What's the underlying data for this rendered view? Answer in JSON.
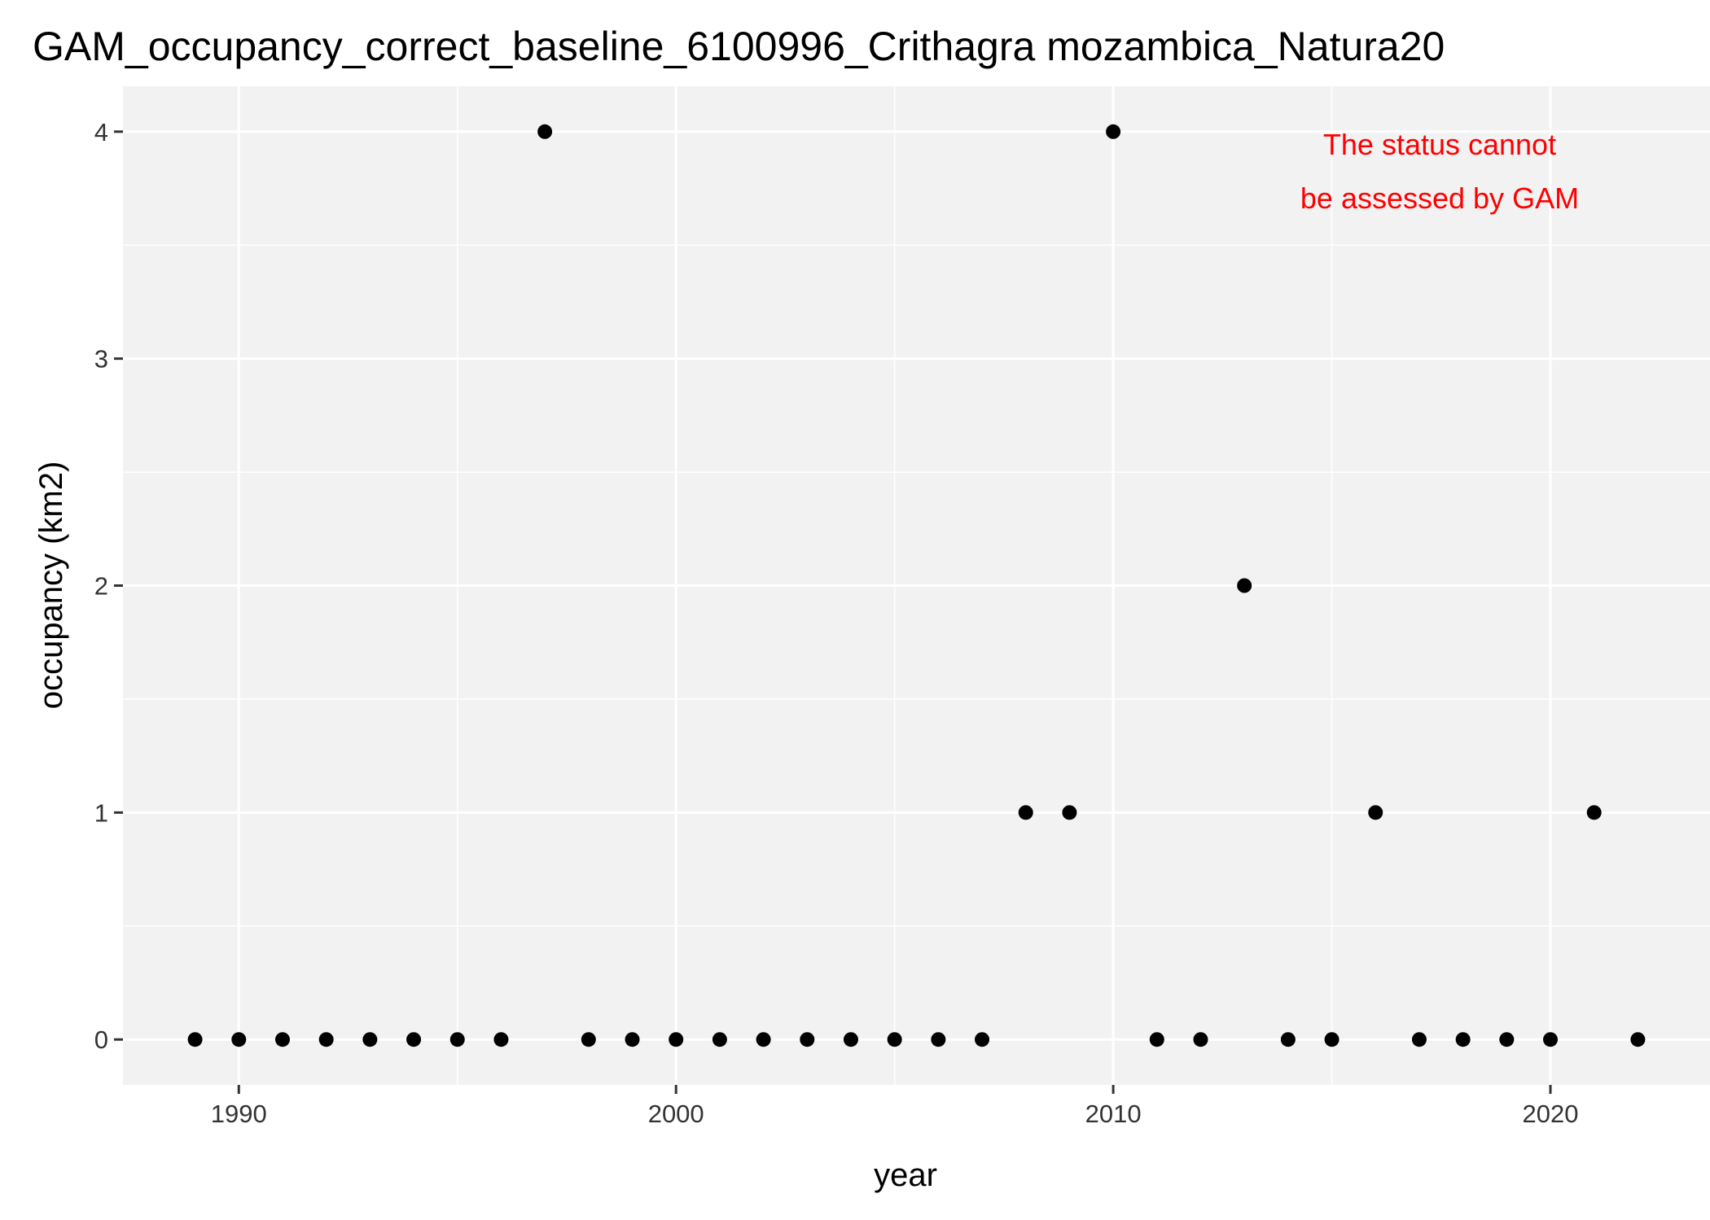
{
  "chart_data": {
    "type": "scatter",
    "title": "GAM_occupancy_correct_baseline_6100996_Crithagra mozambica_Natura20",
    "xlabel": "year",
    "ylabel": "occupancy (km2)",
    "xlim": [
      1987.35,
      2023.65
    ],
    "ylim": [
      -0.2,
      4.2
    ],
    "x_ticks": [
      1990,
      2000,
      2010,
      2020
    ],
    "x_tick_labels": [
      "1990",
      "2000",
      "2010",
      "2020"
    ],
    "y_ticks": [
      0,
      1,
      2,
      3,
      4
    ],
    "y_tick_labels": [
      "0",
      "1",
      "2",
      "3",
      "4"
    ],
    "grid": true,
    "legend": "none",
    "series": [
      {
        "color": "#000000",
        "points": [
          {
            "x": 1989,
            "y": 0
          },
          {
            "x": 1990,
            "y": 0
          },
          {
            "x": 1991,
            "y": 0
          },
          {
            "x": 1992,
            "y": 0
          },
          {
            "x": 1993,
            "y": 0
          },
          {
            "x": 1994,
            "y": 0
          },
          {
            "x": 1995,
            "y": 0
          },
          {
            "x": 1996,
            "y": 0
          },
          {
            "x": 1997,
            "y": 4
          },
          {
            "x": 1998,
            "y": 0
          },
          {
            "x": 1999,
            "y": 0
          },
          {
            "x": 2000,
            "y": 0
          },
          {
            "x": 2001,
            "y": 0
          },
          {
            "x": 2002,
            "y": 0
          },
          {
            "x": 2003,
            "y": 0
          },
          {
            "x": 2004,
            "y": 0
          },
          {
            "x": 2005,
            "y": 0
          },
          {
            "x": 2006,
            "y": 0
          },
          {
            "x": 2007,
            "y": 0
          },
          {
            "x": 2008,
            "y": 1
          },
          {
            "x": 2009,
            "y": 1
          },
          {
            "x": 2010,
            "y": 4
          },
          {
            "x": 2011,
            "y": 0
          },
          {
            "x": 2012,
            "y": 0
          },
          {
            "x": 2013,
            "y": 2
          },
          {
            "x": 2014,
            "y": 0
          },
          {
            "x": 2015,
            "y": 0
          },
          {
            "x": 2016,
            "y": 1
          },
          {
            "x": 2017,
            "y": 0
          },
          {
            "x": 2018,
            "y": 0
          },
          {
            "x": 2019,
            "y": 0
          },
          {
            "x": 2020,
            "y": 0
          },
          {
            "x": 2021,
            "y": 1
          },
          {
            "x": 2022,
            "y": 0
          }
        ]
      }
    ],
    "annotation": {
      "lines": [
        "The status cannot",
        "be assessed by GAM"
      ],
      "color": "#ff0000",
      "placement": "top-right"
    },
    "colors": {
      "panel_background": "#f2f2f2",
      "grid": "#ffffff",
      "axis_ticks": "#333333"
    }
  }
}
